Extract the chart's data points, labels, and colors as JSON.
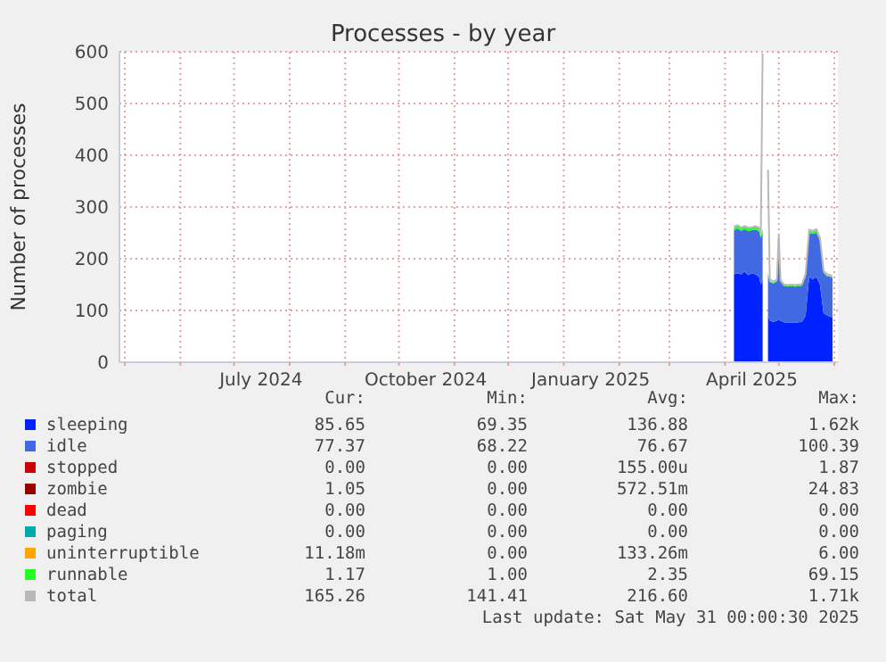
{
  "chart_data": {
    "type": "area",
    "stacked": true,
    "title": "Processes - by year",
    "ylabel": "Number of processes",
    "legend": "bottom",
    "grid": true,
    "xlim": [
      "2024-04-28",
      "2025-06-03"
    ],
    "xticks": [
      {
        "value": "2024-05-01",
        "label": null
      },
      {
        "value": "2024-06-01",
        "label": null
      },
      {
        "value": "2024-07-01",
        "label": null
      },
      {
        "value": "2024-07-16",
        "label": "July 2024"
      },
      {
        "value": "2024-08-01",
        "label": null
      },
      {
        "value": "2024-09-01",
        "label": null
      },
      {
        "value": "2024-10-01",
        "label": null
      },
      {
        "value": "2024-10-16",
        "label": "October 2024"
      },
      {
        "value": "2024-11-01",
        "label": null
      },
      {
        "value": "2024-12-01",
        "label": null
      },
      {
        "value": "2025-01-01",
        "label": null
      },
      {
        "value": "2025-01-16",
        "label": "January 2025"
      },
      {
        "value": "2025-02-01",
        "label": null
      },
      {
        "value": "2025-03-01",
        "label": null
      },
      {
        "value": "2025-04-01",
        "label": null
      },
      {
        "value": "2025-04-16",
        "label": "April 2025"
      },
      {
        "value": "2025-05-01",
        "label": null
      },
      {
        "value": "2025-06-01",
        "label": null
      }
    ],
    "ylim": [
      0,
      600
    ],
    "yticks": [
      0,
      100,
      200,
      300,
      400,
      500,
      600
    ],
    "x": [
      "2025-04-06",
      "2025-04-08",
      "2025-04-10",
      "2025-04-12",
      "2025-04-14",
      "2025-04-16",
      "2025-04-18",
      "2025-04-20",
      "2025-04-21",
      "2025-04-22",
      "2025-04-23",
      "2025-04-24",
      "2025-04-25",
      "2025-04-26",
      "2025-04-28",
      "2025-04-30",
      "2025-05-01",
      "2025-05-02",
      "2025-05-04",
      "2025-05-06",
      "2025-05-08",
      "2025-05-10",
      "2025-05-12",
      "2025-05-14",
      "2025-05-16",
      "2025-05-18",
      "2025-05-20",
      "2025-05-22",
      "2025-05-24",
      "2025-05-26",
      "2025-05-28",
      "2025-05-30",
      "2025-05-31"
    ],
    "series": [
      {
        "name": "sleeping",
        "color": "#0022ff",
        "values": [
          170,
          172,
          170,
          175,
          168,
          172,
          170,
          165,
          150,
          160,
          null,
          null,
          90,
          80,
          78,
          80,
          82,
          80,
          77,
          76,
          77,
          76,
          77,
          78,
          90,
          165,
          160,
          165,
          150,
          95,
          90,
          88,
          86
        ]
      },
      {
        "name": "idle",
        "color": "#4169e1",
        "values": [
          85,
          86,
          84,
          82,
          85,
          83,
          86,
          88,
          90,
          90,
          null,
          null,
          80,
          75,
          74,
          76,
          150,
          75,
          70,
          70,
          70,
          70,
          70,
          70,
          75,
          85,
          88,
          85,
          85,
          78,
          76,
          77,
          77
        ]
      },
      {
        "name": "stopped",
        "color": "#cc0000",
        "values": [
          null,
          null,
          null,
          null,
          null,
          null,
          null,
          null,
          null,
          null,
          null,
          null,
          null,
          null,
          null,
          null,
          null,
          null,
          null,
          null,
          null,
          null,
          null,
          null,
          null,
          null,
          null,
          null,
          null,
          null,
          null,
          null,
          null
        ]
      },
      {
        "name": "zombie",
        "color": "#990000",
        "values": [
          null,
          null,
          null,
          null,
          null,
          null,
          null,
          null,
          null,
          null,
          null,
          null,
          null,
          null,
          null,
          null,
          null,
          null,
          null,
          null,
          null,
          null,
          null,
          null,
          null,
          null,
          null,
          null,
          null,
          null,
          null,
          null,
          null
        ]
      },
      {
        "name": "dead",
        "color": "#ff0000",
        "values": [
          null,
          null,
          null,
          null,
          null,
          null,
          null,
          null,
          null,
          null,
          null,
          null,
          null,
          null,
          null,
          null,
          null,
          null,
          null,
          null,
          null,
          null,
          null,
          null,
          null,
          null,
          null,
          null,
          null,
          null,
          null,
          null,
          null
        ]
      },
      {
        "name": "paging",
        "color": "#00aaaa",
        "values": [
          null,
          null,
          null,
          null,
          null,
          null,
          null,
          null,
          null,
          null,
          null,
          null,
          null,
          null,
          null,
          null,
          null,
          null,
          null,
          null,
          null,
          null,
          null,
          null,
          null,
          null,
          null,
          null,
          null,
          null,
          null,
          null,
          null
        ]
      },
      {
        "name": "uninterruptible",
        "color": "#ffa500",
        "values": [
          null,
          null,
          null,
          null,
          null,
          null,
          null,
          null,
          null,
          null,
          null,
          null,
          null,
          null,
          null,
          null,
          null,
          null,
          null,
          null,
          null,
          null,
          null,
          null,
          null,
          null,
          null,
          null,
          null,
          null,
          null,
          null,
          null
        ]
      },
      {
        "name": "runnable",
        "color": "#22ff22",
        "values": [
          5,
          6,
          5,
          5,
          6,
          5,
          6,
          5,
          5,
          8,
          null,
          null,
          3,
          2,
          2,
          2,
          3,
          2,
          2,
          2,
          2,
          2,
          2,
          2,
          3,
          4,
          4,
          5,
          3,
          2,
          2,
          1,
          1
        ]
      },
      {
        "name": "total",
        "type": "line",
        "color": "#b8b8b8",
        "values": [
          262,
          265,
          260,
          263,
          260,
          261,
          263,
          260,
          250,
          597,
          null,
          null,
          372,
          160,
          156,
          160,
          245,
          158,
          150,
          149,
          150,
          149,
          150,
          151,
          170,
          256,
          254,
          257,
          240,
          177,
          170,
          168,
          165
        ]
      }
    ],
    "annotations": [
      "Cur:",
      "Min:",
      "Avg:",
      "Max:",
      "85.65",
      "69.35",
      "136.88",
      "1.62k",
      "77.37",
      "68.22",
      "76.67",
      "100.39",
      "0.00",
      "0.00",
      "155.00u",
      "1.87",
      "1.05",
      "0.00",
      "572.51m",
      "24.83",
      "0.00",
      "0.00",
      "0.00",
      "0.00",
      "0.00",
      "0.00",
      "0.00",
      "0.00",
      "11.18m",
      "0.00",
      "133.26m",
      "6.00",
      "1.17",
      "1.00",
      "2.35",
      "69.15",
      "165.26",
      "141.41",
      "216.60",
      "1.71k",
      "Last update: Sat May 31 00:00:30 2025"
    ]
  }
}
